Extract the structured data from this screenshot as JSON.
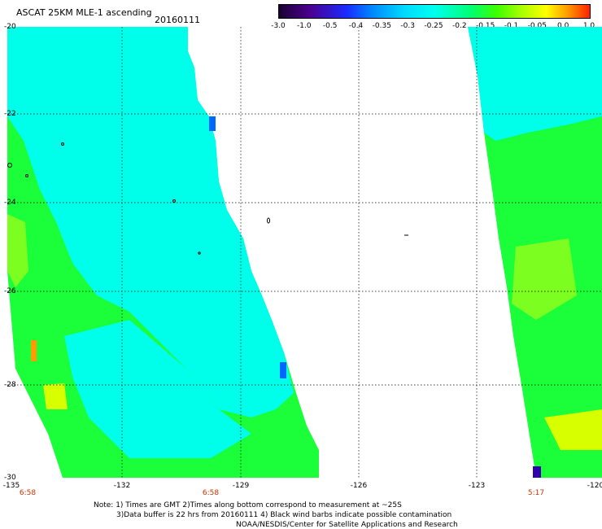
{
  "header": {
    "title": "ASCAT 25KM MLE-1 ascending",
    "date": "20160111"
  },
  "colorbar": {
    "labels": [
      "-3.0",
      "-1.0",
      "-0.5",
      "-0.4",
      "-0.35",
      "-0.3",
      "-0.25",
      "-0.2",
      "-0.15",
      "-0.1",
      "-0.05",
      "0.0",
      "1.0"
    ],
    "colors": [
      "#1a0030",
      "#4b0090",
      "#1a2cff",
      "#0088ff",
      "#00d8ff",
      "#00ffee",
      "#00ff70",
      "#3cff00",
      "#a8ff00",
      "#ffff00",
      "#ff9900",
      "#ff2000"
    ]
  },
  "map": {
    "lat_labels": [
      "-20",
      "-22",
      "-24",
      "-26",
      "-28",
      "-30"
    ],
    "lon_labels": [
      "-135",
      "-132",
      "-129",
      "-126",
      "-123",
      "-120"
    ],
    "time_labels": [
      "6:58",
      "6:58",
      "5:17"
    ],
    "swath_colors": {
      "cyan": "#00ffea",
      "green": "#1aff3a",
      "light_green": "#7cff20",
      "yellow": "#d8ff00",
      "orange": "#ff9a00",
      "blue": "#0066ff"
    }
  },
  "footer": {
    "line1": "Note: 1) Times are GMT 2)Times along bottom correspond to measurement at ~25S",
    "line2": "3)Data buffer is 22 hrs from 20160111 4) Black wind barbs indicate possible contamination",
    "line3": "NOAA/NESDIS/Center for Satellite Applications and Research"
  }
}
